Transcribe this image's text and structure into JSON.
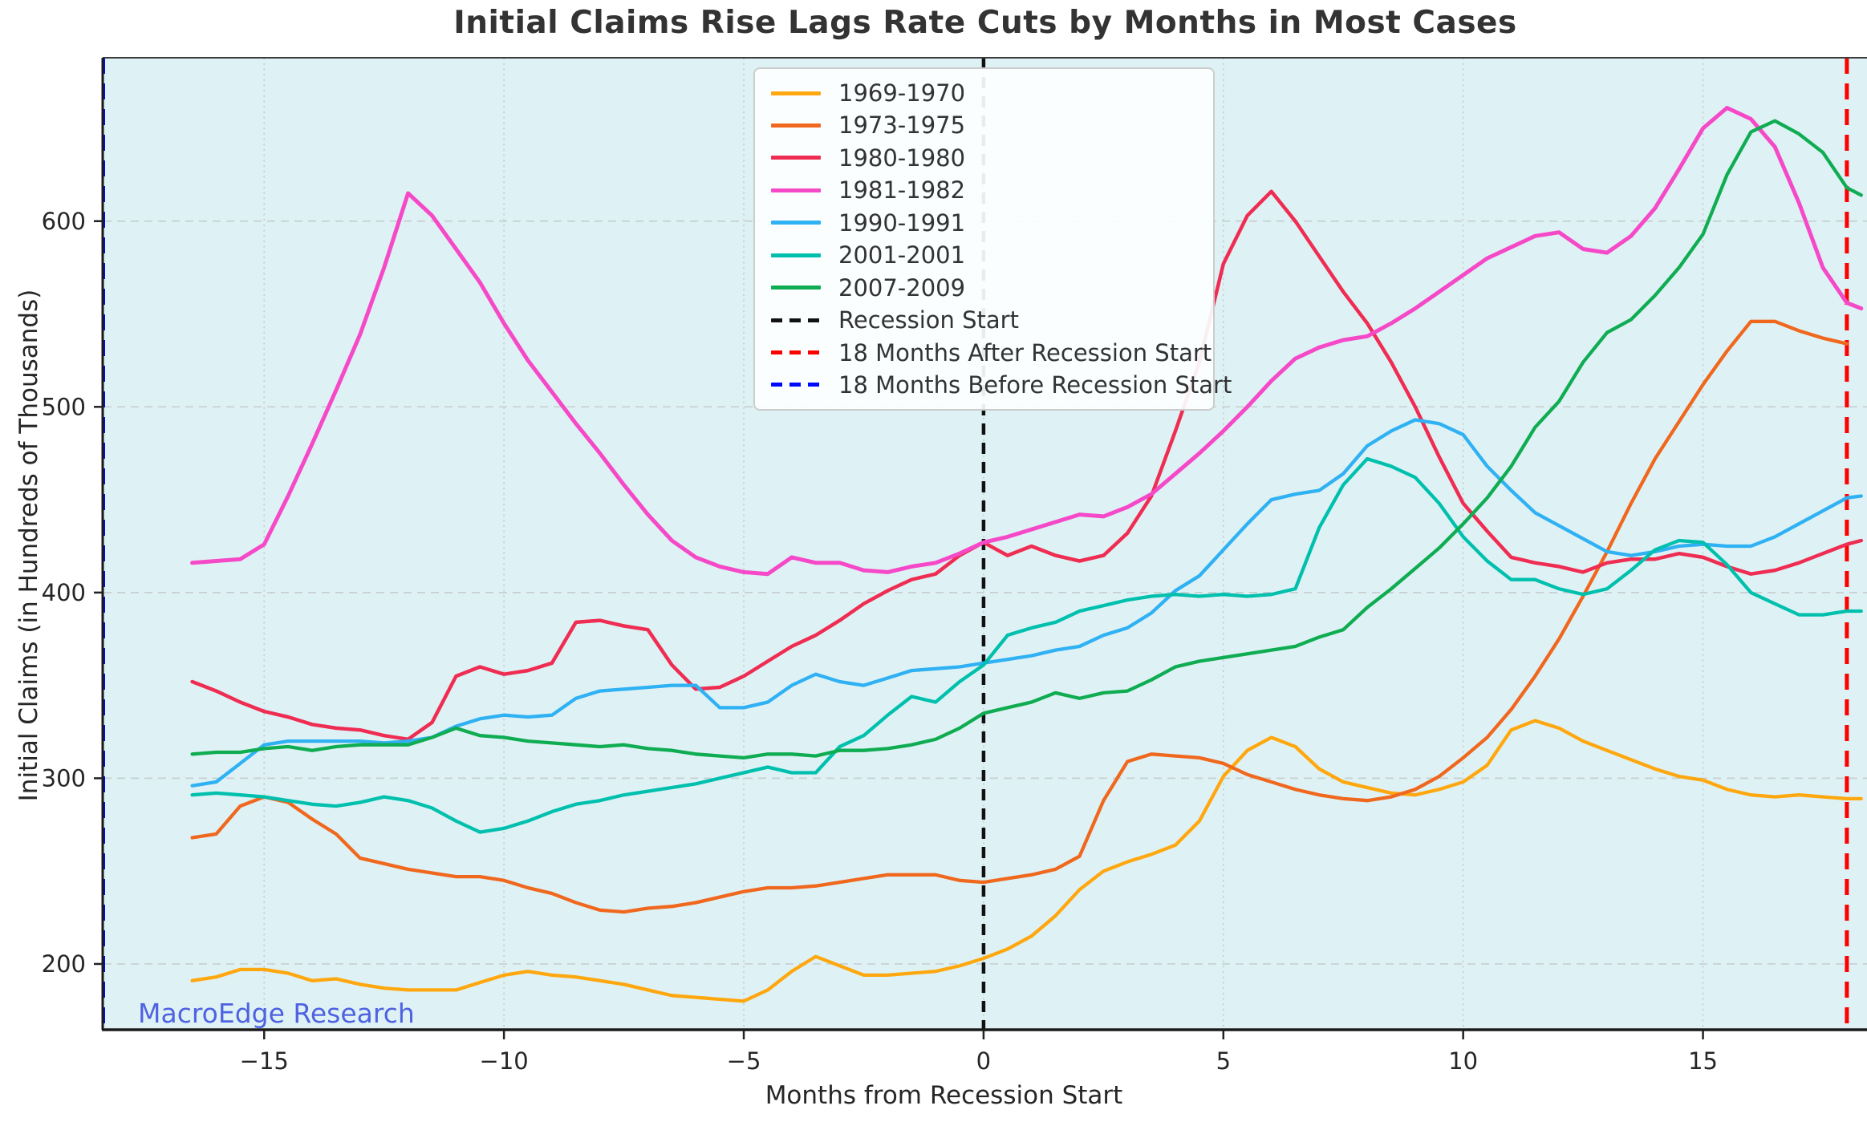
{
  "title": "Initial Claims Rise Lags Rate Cuts by Months in Most Cases",
  "watermark": "MacroEdge Research",
  "colors": {
    "figure_bg": "#ffffff",
    "plot_bg": "#DEF2F5",
    "grid": "#C8CED1",
    "spine_dark": "#1a1a1a",
    "spine_light": "#3c3c3c",
    "title_text": "#333333",
    "axis_text": "#262626",
    "watermark_text": "#4356E0"
  },
  "chart_data": {
    "type": "line",
    "title": "Initial Claims Rise Lags Rate Cuts by Months in Most Cases",
    "xlabel": "Months from Recession Start",
    "ylabel": "Initial Claims (in Hundreds of Thousands)",
    "xlim": [
      -18.35,
      18.42
    ],
    "ylim": [
      165,
      688
    ],
    "grid": true,
    "legend_position": "upper center",
    "xticks": {
      "values": [
        -15,
        -10,
        -5,
        0,
        5,
        10,
        15
      ],
      "labels": [
        "−15",
        "−10",
        "−5",
        "0",
        "5",
        "10",
        "15"
      ]
    },
    "yticks": {
      "values": [
        200,
        300,
        400,
        500,
        600
      ],
      "labels": [
        "200",
        "300",
        "400",
        "500",
        "600"
      ]
    },
    "x": [
      -16.5,
      -16,
      -15.5,
      -15,
      -14.5,
      -14,
      -13.5,
      -13,
      -12.5,
      -12,
      -11.5,
      -11,
      -10.5,
      -10,
      -9.5,
      -9,
      -8.5,
      -8,
      -7.5,
      -7,
      -6.5,
      -6,
      -5.5,
      -5,
      -4.5,
      -4,
      -3.5,
      -3,
      -2.5,
      -2,
      -1.5,
      -1,
      -0.5,
      0,
      0.5,
      1,
      1.5,
      2,
      2.5,
      3,
      3.5,
      4,
      4.5,
      5,
      5.5,
      6,
      6.5,
      7,
      7.5,
      8,
      8.5,
      9,
      9.5,
      10,
      10.5,
      11,
      11.5,
      12,
      12.5,
      13,
      13.5,
      14,
      14.5,
      15,
      15.5,
      16,
      16.5,
      17,
      17.5,
      18,
      18.3
    ],
    "series": [
      {
        "name": "1969-1970",
        "color": "#FFA70F",
        "width": 4.3,
        "y": [
          191,
          193,
          197,
          197,
          195,
          191,
          192,
          189,
          187,
          186,
          186,
          186,
          190,
          194,
          196,
          194,
          193,
          191,
          189,
          186,
          183,
          182,
          181,
          180,
          186,
          196,
          204,
          199,
          194,
          194,
          195,
          196,
          199,
          203,
          208,
          215,
          226,
          240,
          250,
          255,
          259,
          264,
          277,
          301,
          315,
          322,
          317,
          305,
          298,
          295,
          292,
          291,
          294,
          298,
          307,
          326,
          331,
          327,
          320,
          315,
          310,
          305,
          301,
          299,
          294,
          291,
          290,
          291,
          290,
          289,
          289
        ]
      },
      {
        "name": "1973-1975",
        "color": "#F0671E",
        "width": 4.3,
        "y": [
          268,
          270,
          285,
          290,
          287,
          278,
          270,
          257,
          254,
          251,
          249,
          247,
          247,
          245,
          241,
          238,
          233,
          229,
          228,
          230,
          231,
          233,
          236,
          239,
          241,
          241,
          242,
          244,
          246,
          248,
          248,
          248,
          245,
          244,
          246,
          248,
          251,
          258,
          288,
          309,
          313,
          312,
          311,
          308,
          302,
          298,
          294,
          291,
          289,
          288,
          290,
          294,
          301,
          311,
          322,
          337,
          355,
          375,
          398,
          422,
          448,
          472,
          492,
          512,
          530,
          546,
          546,
          541,
          537,
          534,
          null
        ]
      },
      {
        "name": "1980-1980",
        "color": "#EF2D52",
        "width": 4.5,
        "y": [
          352,
          347,
          341,
          336,
          333,
          329,
          327,
          326,
          323,
          321,
          330,
          355,
          360,
          356,
          358,
          362,
          384,
          385,
          382,
          380,
          361,
          348,
          349,
          355,
          363,
          371,
          377,
          385,
          394,
          401,
          407,
          410,
          420,
          427,
          420,
          425,
          420,
          417,
          420,
          432,
          452,
          487,
          524,
          577,
          603,
          616,
          600,
          581,
          562,
          545,
          524,
          500,
          473,
          448,
          433,
          419,
          416,
          414,
          411,
          416,
          418,
          418,
          421,
          419,
          414,
          410,
          412,
          416,
          421,
          426,
          428
        ]
      },
      {
        "name": "1981-1982",
        "color": "#F549C8",
        "width": 5,
        "y": [
          416,
          417,
          418,
          426,
          452,
          480,
          509,
          539,
          575,
          615,
          603,
          585,
          567,
          545,
          525,
          508,
          491,
          475,
          458,
          442,
          428,
          419,
          414,
          411,
          410,
          419,
          416,
          416,
          412,
          411,
          414,
          416,
          421,
          427,
          430,
          434,
          438,
          442,
          441,
          446,
          453,
          464,
          475,
          487,
          500,
          514,
          526,
          532,
          536,
          538,
          545,
          553,
          562,
          571,
          580,
          586,
          592,
          594,
          585,
          583,
          592,
          607,
          628,
          650,
          661,
          655,
          640,
          610,
          575,
          556,
          553
        ]
      },
      {
        "name": "1990-1991",
        "color": "#2FB1F3",
        "width": 4.3,
        "y": [
          296,
          298,
          308,
          318,
          320,
          320,
          320,
          320,
          319,
          320,
          322,
          328,
          332,
          334,
          333,
          334,
          343,
          347,
          348,
          349,
          350,
          350,
          338,
          338,
          341,
          350,
          356,
          352,
          350,
          354,
          358,
          359,
          360,
          362,
          364,
          366,
          369,
          371,
          377,
          381,
          389,
          401,
          409,
          423,
          437,
          450,
          453,
          455,
          464,
          479,
          487,
          493,
          491,
          485,
          468,
          455,
          443,
          436,
          429,
          422,
          420,
          422,
          425,
          426,
          425,
          425,
          430,
          437,
          444,
          451,
          452
        ]
      },
      {
        "name": "2001-2001",
        "color": "#00C0AD",
        "width": 4.3,
        "y": [
          291,
          292,
          291,
          290,
          288,
          286,
          285,
          287,
          290,
          288,
          284,
          277,
          271,
          273,
          277,
          282,
          286,
          288,
          291,
          293,
          295,
          297,
          300,
          303,
          306,
          303,
          303,
          317,
          323,
          334,
          344,
          341,
          352,
          361,
          377,
          381,
          384,
          390,
          393,
          396,
          398,
          399,
          398,
          399,
          398,
          399,
          402,
          435,
          458,
          472,
          468,
          462,
          448,
          430,
          417,
          407,
          407,
          402,
          399,
          402,
          412,
          423,
          428,
          427,
          415,
          400,
          394,
          388,
          388,
          390,
          390
        ]
      },
      {
        "name": "2007-2009",
        "color": "#0FAC52",
        "width": 4.3,
        "y": [
          313,
          314,
          314,
          316,
          317,
          315,
          317,
          318,
          318,
          318,
          322,
          327,
          323,
          322,
          320,
          319,
          318,
          317,
          318,
          316,
          315,
          313,
          312,
          311,
          313,
          313,
          312,
          315,
          315,
          316,
          318,
          321,
          327,
          335,
          338,
          341,
          346,
          343,
          346,
          347,
          353,
          360,
          363,
          365,
          367,
          369,
          371,
          376,
          380,
          392,
          402,
          413,
          424,
          437,
          451,
          468,
          489,
          503,
          524,
          540,
          547,
          560,
          575,
          593,
          625,
          648,
          654,
          647,
          637,
          618,
          614
        ]
      }
    ],
    "vlines": [
      {
        "name": "18 Months Before Recession Start",
        "x": -18.35,
        "color": "#0008FF",
        "dash": "20 12",
        "width": 4
      },
      {
        "name": "Recession Start",
        "x": 0,
        "color": "#111111",
        "dash": "14 10",
        "width": 4.5
      },
      {
        "name": "18 Months After Recession Start",
        "x": 18,
        "color": "#FF0000",
        "dash": "20 12",
        "width": 5
      }
    ],
    "legend": {
      "items": [
        {
          "label": "1969-1970",
          "color": "#FFA70F",
          "dashed": false
        },
        {
          "label": "1973-1975",
          "color": "#F0671E",
          "dashed": false
        },
        {
          "label": "1980-1980",
          "color": "#EF2D52",
          "dashed": false
        },
        {
          "label": "1981-1982",
          "color": "#F549C8",
          "dashed": false
        },
        {
          "label": "1990-1991",
          "color": "#2FB1F3",
          "dashed": false
        },
        {
          "label": "2001-2001",
          "color": "#00C0AD",
          "dashed": false
        },
        {
          "label": "2007-2009",
          "color": "#0FAC52",
          "dashed": false
        },
        {
          "label": "Recession Start",
          "color": "#111111",
          "dashed": true
        },
        {
          "label": "18 Months After Recession Start",
          "color": "#FF0000",
          "dashed": true
        },
        {
          "label": "18 Months Before Recession Start",
          "color": "#0008FF",
          "dashed": true
        }
      ]
    }
  }
}
